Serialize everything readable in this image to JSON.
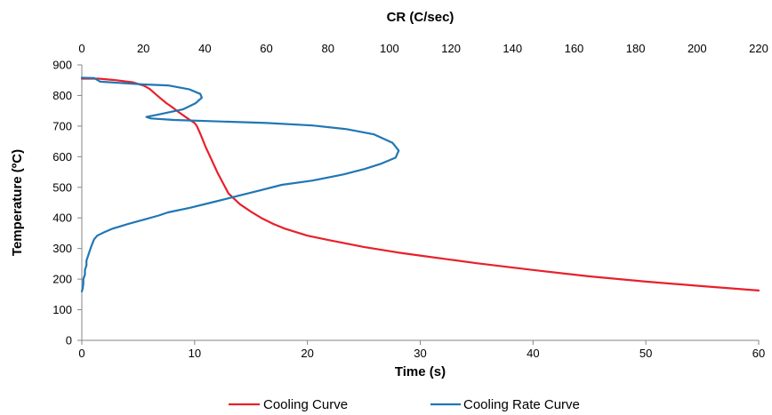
{
  "chart_data": {
    "type": "line",
    "xlabel": "Time (s)",
    "ylabel": "Temperature (ºC)",
    "x2label": "CR (C/sec)",
    "xlim": [
      0,
      60
    ],
    "x2lim": [
      0,
      220
    ],
    "ylim": [
      0,
      900
    ],
    "x_ticks": [
      "0",
      "10",
      "20",
      "30",
      "40",
      "50",
      "60"
    ],
    "x2_ticks": [
      "0",
      "20",
      "40",
      "60",
      "80",
      "100",
      "120",
      "140",
      "160",
      "180",
      "200",
      "220"
    ],
    "y_ticks": [
      "0",
      "100",
      "200",
      "300",
      "400",
      "500",
      "600",
      "700",
      "800",
      "900"
    ],
    "grid": false,
    "legend_position": "bottom",
    "series": [
      {
        "name": "Cooling Curve",
        "axis": "bottom",
        "color": "#e8202a",
        "points": [
          [
            0.0,
            855
          ],
          [
            1.5,
            855
          ],
          [
            3.0,
            850
          ],
          [
            4.5,
            843
          ],
          [
            5.5,
            832
          ],
          [
            6.0,
            822
          ],
          [
            6.5,
            806
          ],
          [
            7.0,
            790
          ],
          [
            7.5,
            775
          ],
          [
            8.0,
            762
          ],
          [
            8.5,
            748
          ],
          [
            9.0,
            735
          ],
          [
            9.5,
            722
          ],
          [
            10.0,
            710
          ],
          [
            10.2,
            700
          ],
          [
            10.5,
            675
          ],
          [
            11.0,
            630
          ],
          [
            11.5,
            590
          ],
          [
            12.0,
            550
          ],
          [
            12.5,
            515
          ],
          [
            13.0,
            480
          ],
          [
            14.0,
            445
          ],
          [
            15.0,
            420
          ],
          [
            16.0,
            398
          ],
          [
            17.0,
            380
          ],
          [
            18.0,
            365
          ],
          [
            20.0,
            342
          ],
          [
            22.0,
            327
          ],
          [
            25.0,
            305
          ],
          [
            28.0,
            287
          ],
          [
            30.0,
            277
          ],
          [
            35.0,
            252
          ],
          [
            40.0,
            230
          ],
          [
            45.0,
            209
          ],
          [
            50.0,
            192
          ],
          [
            55.0,
            177
          ],
          [
            60.0,
            163
          ]
        ]
      },
      {
        "name": "Cooling Rate Curve",
        "axis": "top",
        "color": "#1f77b4",
        "points": [
          [
            0.0,
            858
          ],
          [
            4.0,
            857
          ],
          [
            6.0,
            845
          ],
          [
            20.0,
            836
          ],
          [
            28.0,
            833
          ],
          [
            35.0,
            820
          ],
          [
            38.5,
            805
          ],
          [
            39.0,
            793
          ],
          [
            37.0,
            775
          ],
          [
            33.0,
            755
          ],
          [
            25.0,
            738
          ],
          [
            21.0,
            730
          ],
          [
            22.5,
            725
          ],
          [
            30.0,
            720
          ],
          [
            45.0,
            715
          ],
          [
            60.0,
            710
          ],
          [
            75.0,
            702
          ],
          [
            86.0,
            690
          ],
          [
            95.0,
            673
          ],
          [
            101.0,
            645
          ],
          [
            103.0,
            620
          ],
          [
            102.0,
            597
          ],
          [
            97.0,
            576
          ],
          [
            92.0,
            560
          ],
          [
            85.0,
            542
          ],
          [
            75.0,
            522
          ],
          [
            65.0,
            508
          ],
          [
            58.0,
            490
          ],
          [
            50.0,
            470
          ],
          [
            42.0,
            450
          ],
          [
            35.0,
            433
          ],
          [
            28.0,
            418
          ],
          [
            25.0,
            408
          ],
          [
            20.0,
            394
          ],
          [
            15.0,
            380
          ],
          [
            10.0,
            365
          ],
          [
            7.0,
            352
          ],
          [
            5.0,
            342
          ],
          [
            4.0,
            330
          ],
          [
            3.5,
            318
          ],
          [
            3.0,
            305
          ],
          [
            2.5,
            290
          ],
          [
            2.0,
            275
          ],
          [
            1.5,
            260
          ],
          [
            1.5,
            245
          ],
          [
            1.0,
            230
          ],
          [
            1.0,
            215
          ],
          [
            0.5,
            200
          ],
          [
            0.5,
            185
          ],
          [
            0.3,
            170
          ],
          [
            0.0,
            160
          ]
        ]
      }
    ]
  }
}
